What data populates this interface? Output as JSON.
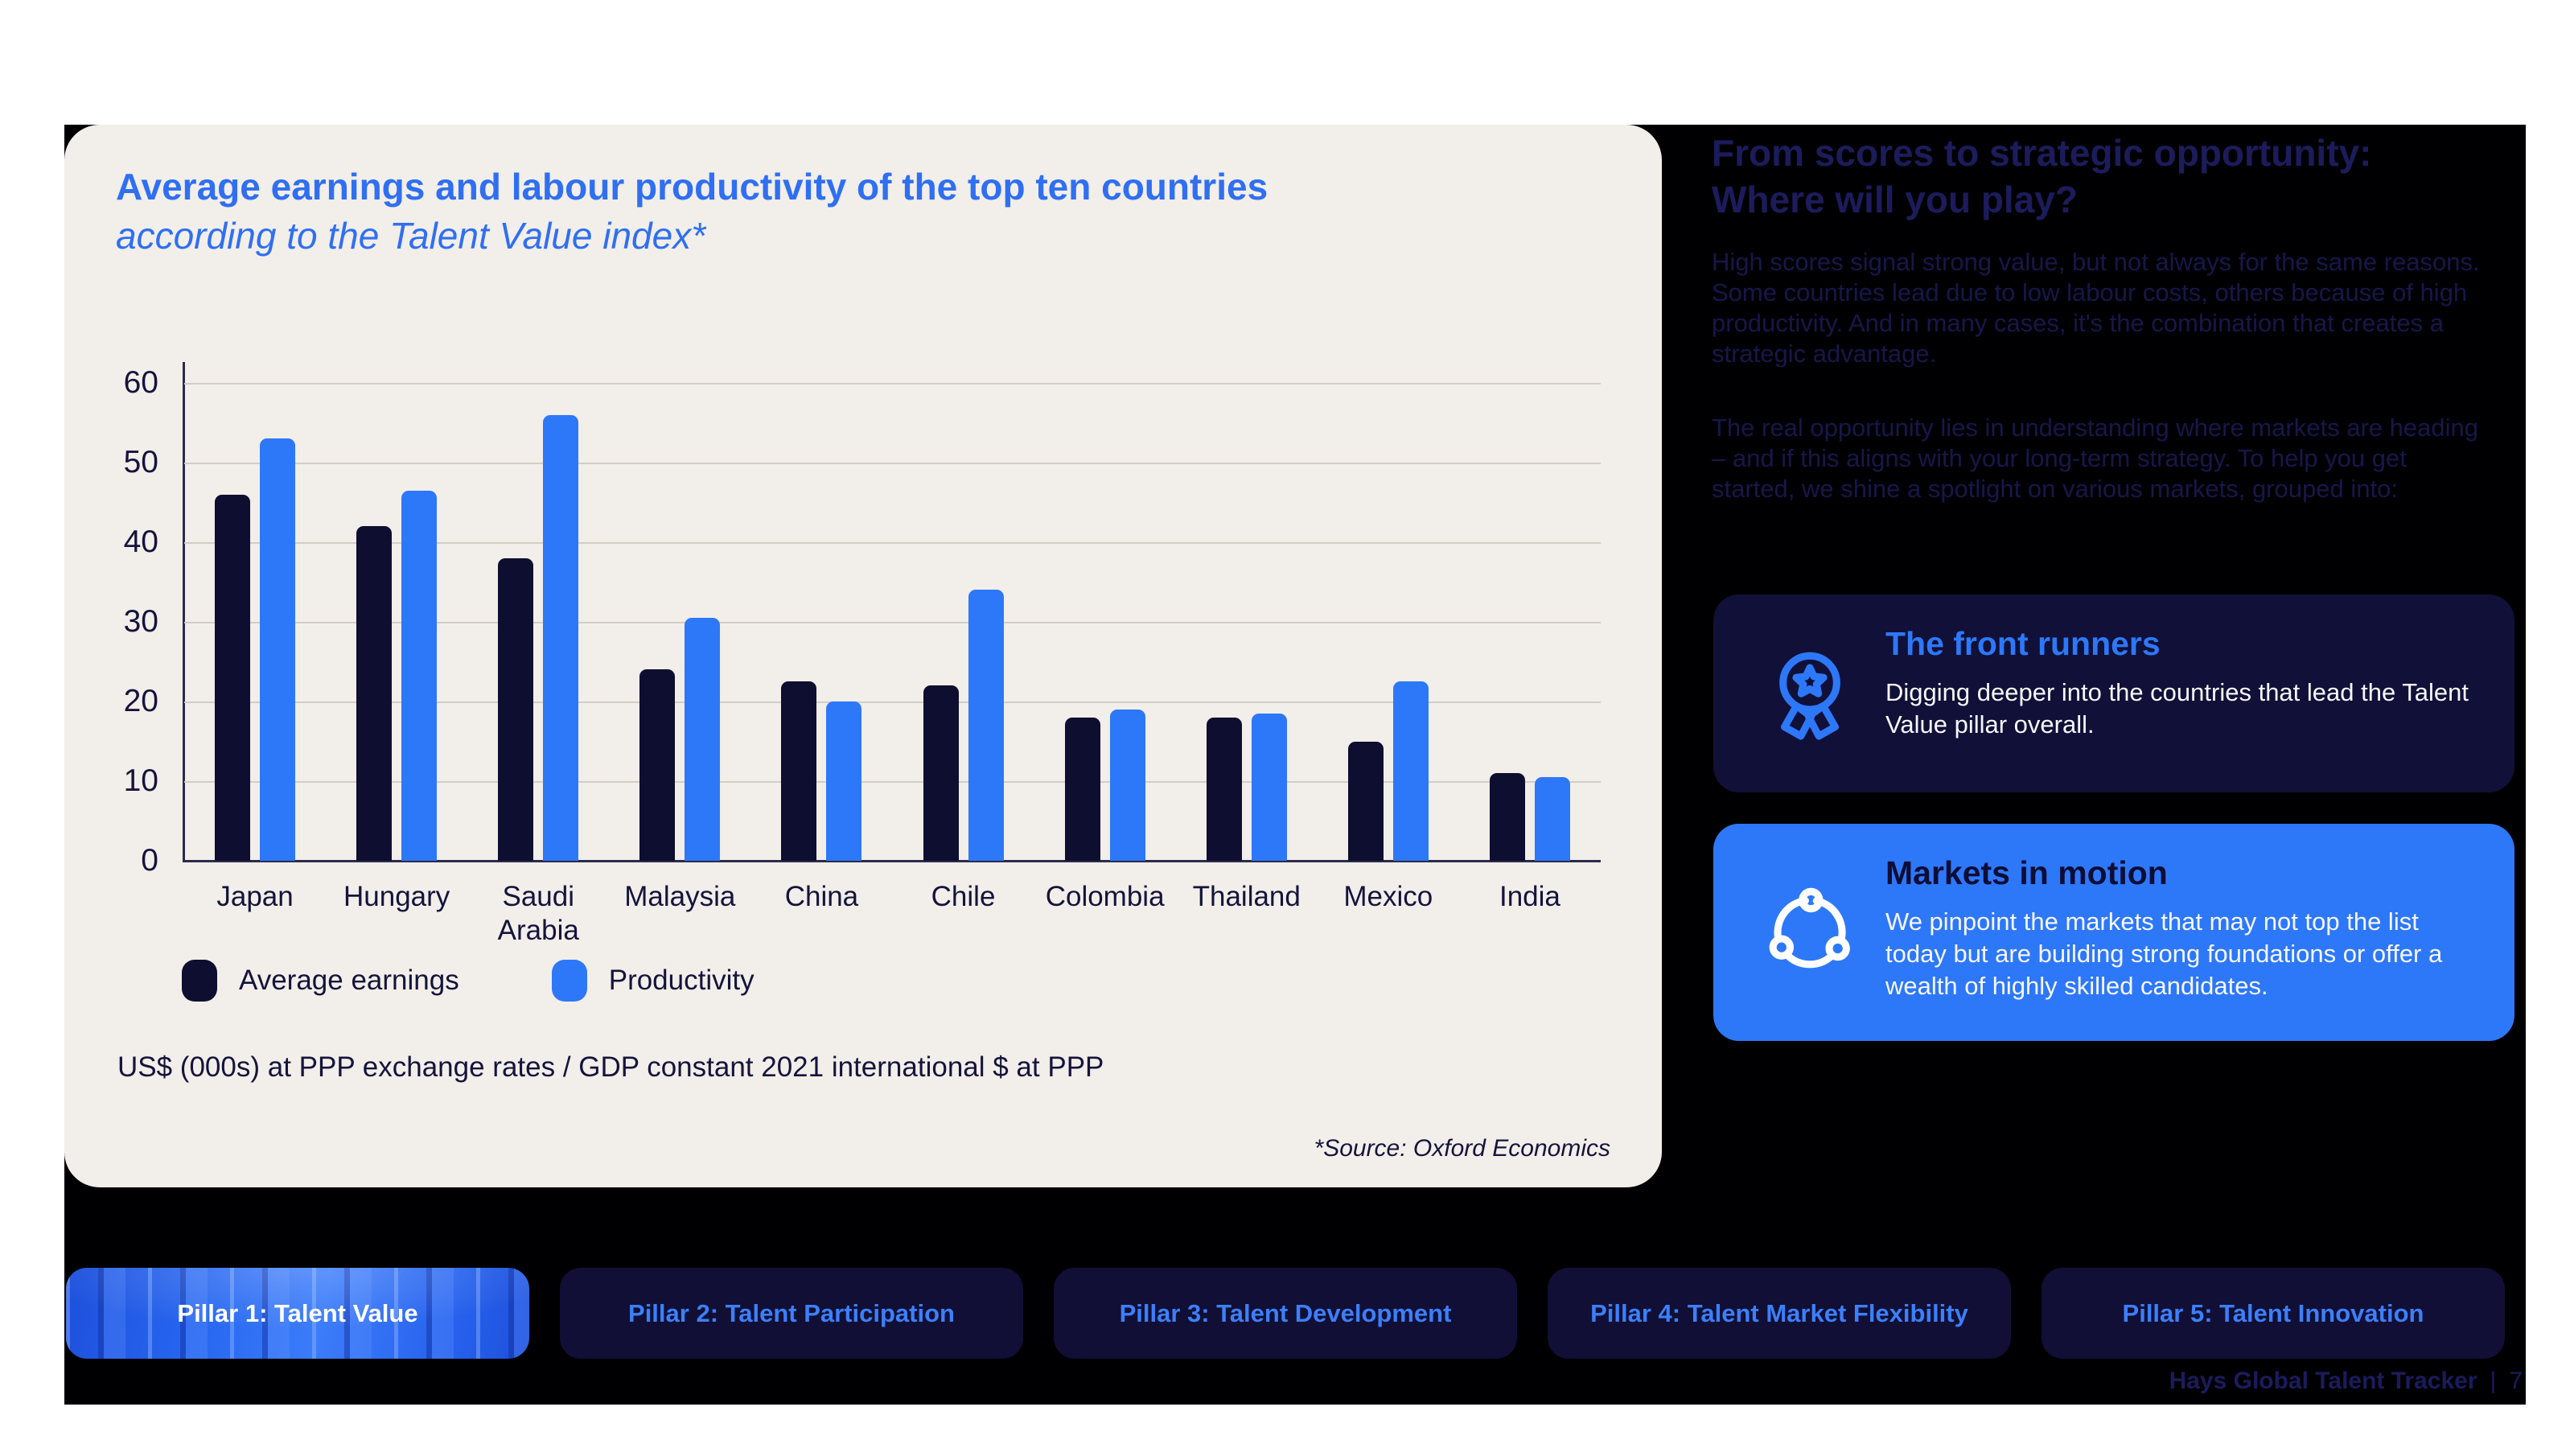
{
  "page": {
    "background": "#ffffff",
    "panel_background": "#000003"
  },
  "chart_card": {
    "background": "#F2EEE9",
    "title": "Average earnings and labour productivity of the top ten countries",
    "subtitle": "according to the Talent Value index*",
    "title_color": "#2F6FF2",
    "footnote": "US$ (000s) at PPP exchange rates / GDP constant 2021 international $ at PPP",
    "source": "*Source: Oxford Economics",
    "legend": [
      {
        "label": "Average earnings",
        "color": "#0E0E30"
      },
      {
        "label": "Productivity",
        "color": "#2D78F8"
      }
    ]
  },
  "chart_data": {
    "type": "bar",
    "title": "Average earnings and labour productivity of the top ten countries according to the Talent Value index*",
    "categories": [
      "Japan",
      "Hungary",
      "Saudi Arabia",
      "Malaysia",
      "China",
      "Chile",
      "Colombia",
      "Thailand",
      "Mexico",
      "India"
    ],
    "series": [
      {
        "name": "Average earnings",
        "color": "#0E0E30",
        "values": [
          46,
          42,
          38,
          24,
          22.5,
          22,
          18,
          18,
          15,
          11
        ]
      },
      {
        "name": "Productivity",
        "color": "#2D78F8",
        "values": [
          53,
          46.5,
          56,
          30.5,
          20,
          34,
          19,
          18.5,
          22.5,
          10.5
        ]
      }
    ],
    "xlabel": "",
    "ylabel": "US$ (000s) at PPP exchange rates / GDP constant 2021 international $ at PPP",
    "ylim": [
      0,
      60
    ],
    "yticks": [
      0,
      10,
      20,
      30,
      40,
      50,
      60
    ],
    "grid": true,
    "legend_position": "bottom",
    "source": "*Source: Oxford Economics"
  },
  "right_panel": {
    "heading": "From scores to strategic opportunity: Where will you play?",
    "paragraph1": "High scores signal strong value, but not always for the same reasons. Some countries lead due to low labour costs, others because of high productivity. And in many cases, it's the combination that creates a strategic advantage.",
    "paragraph2": "The real opportunity lies in understanding where markets are heading – and if this aligns with your long-term strategy. To help you get started, we shine a spotlight on various markets, grouped into:",
    "cards": [
      {
        "icon": "award-icon",
        "title": "The front runners",
        "body": "Digging deeper into the countries that lead the Talent Value pillar overall.",
        "background": "#101038",
        "title_color": "#2D78F8"
      },
      {
        "icon": "network-cycle-icon",
        "title": "Markets in motion",
        "body": "We pinpoint the markets that may not top the list today but are building strong foundations or offer a wealth of highly skilled candidates.",
        "background": "#2D78F8",
        "title_color": "#0D0D36"
      }
    ]
  },
  "tabs": [
    {
      "label": "Pillar 1: Talent Value",
      "active": true
    },
    {
      "label": "Pillar 2: Talent Participation",
      "active": false
    },
    {
      "label": "Pillar 3: Talent Development",
      "active": false
    },
    {
      "label": "Pillar 4: Talent Market Flexibility",
      "active": false
    },
    {
      "label": "Pillar 5: Talent Innovation",
      "active": false
    }
  ],
  "footer": {
    "label": "Hays Global Talent Tracker",
    "separator": "|",
    "page_number": "7"
  }
}
